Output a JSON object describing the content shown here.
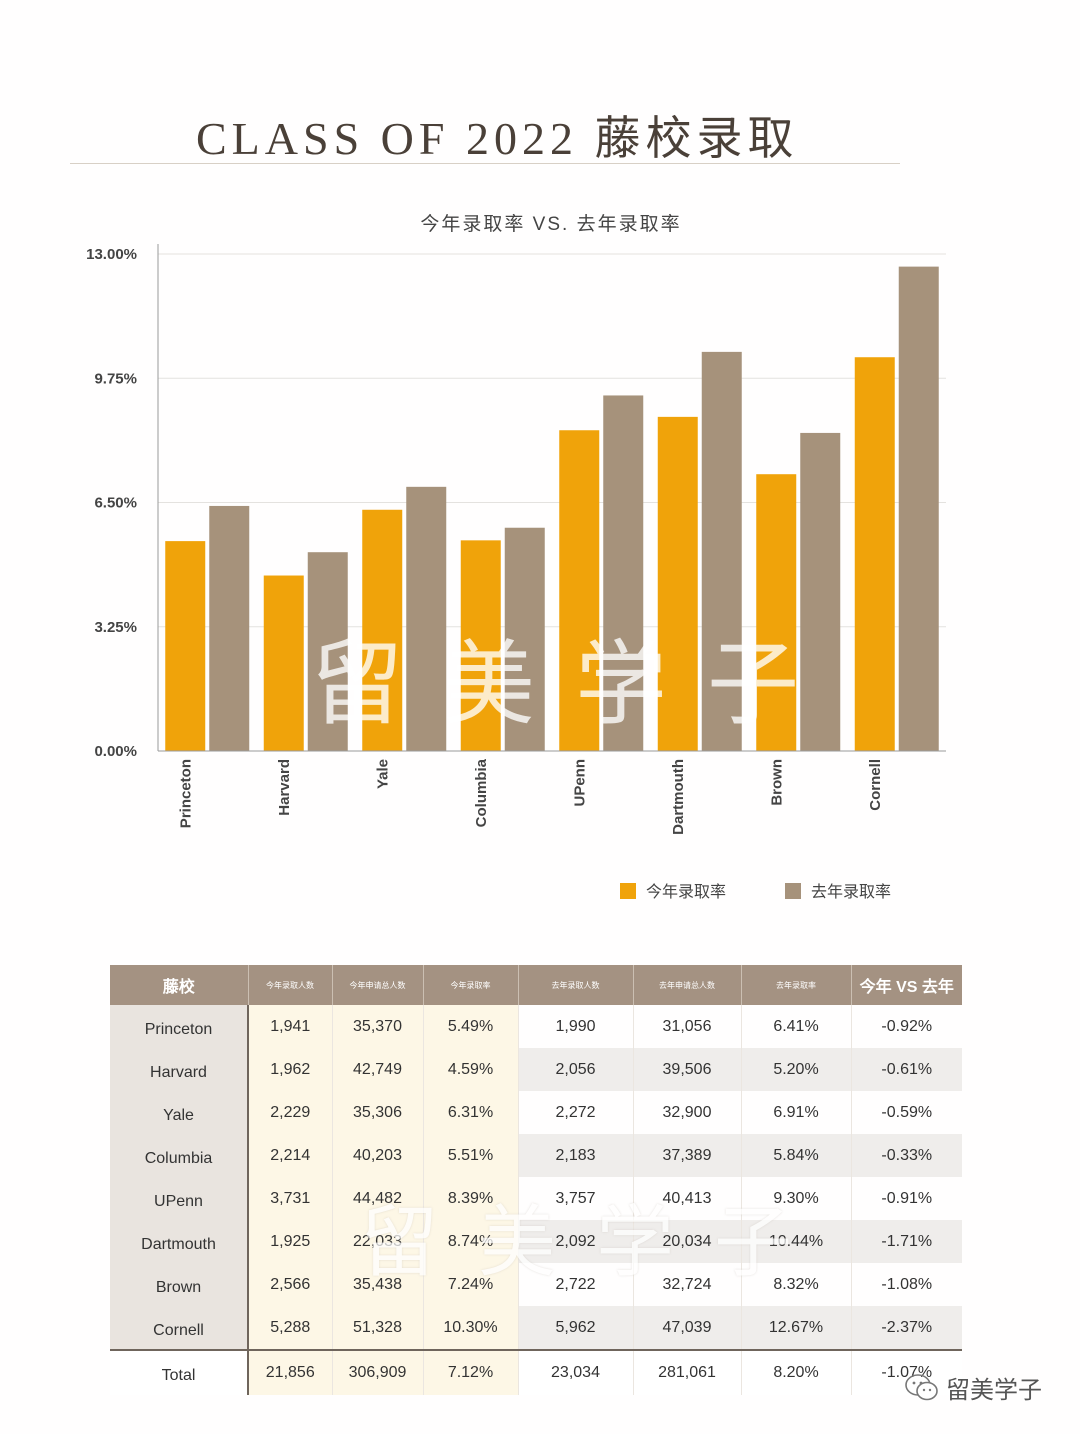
{
  "header": {
    "title": "CLASS OF 2022 藤校录取"
  },
  "chart_data": {
    "type": "bar",
    "title": "今年录取率 VS. 去年录取率",
    "categories": [
      "Princeton",
      "Harvard",
      "Yale",
      "Columbia",
      "UPenn",
      "Dartmouth",
      "Brown",
      "Cornell"
    ],
    "series": [
      {
        "name": "今年录取率",
        "color": "#f0a30a",
        "values": [
          5.49,
          4.59,
          6.31,
          5.51,
          8.39,
          8.74,
          7.24,
          10.3
        ]
      },
      {
        "name": "去年录取率",
        "color": "#a6927b",
        "values": [
          6.41,
          5.2,
          6.91,
          5.84,
          9.3,
          10.44,
          8.32,
          12.67
        ]
      }
    ],
    "ylim": [
      0,
      13
    ],
    "yticks": [
      "0.00%",
      "3.25%",
      "6.50%",
      "9.75%",
      "13.00%"
    ],
    "ytick_values": [
      0,
      3.25,
      6.5,
      9.75,
      13
    ],
    "grid": true,
    "legend": "bottom-right"
  },
  "watermark": {
    "text": "留美学子"
  },
  "table": {
    "headers": [
      "藤校",
      "今年录取人数",
      "今年申请总人数",
      "今年录取率",
      "去年录取人数",
      "去年申请总人数",
      "去年录取率",
      "今年 VS 去年"
    ],
    "rows": [
      [
        "Princeton",
        "1,941",
        "35,370",
        "5.49%",
        "1,990",
        "31,056",
        "6.41%",
        "-0.92%"
      ],
      [
        "Harvard",
        "1,962",
        "42,749",
        "4.59%",
        "2,056",
        "39,506",
        "5.20%",
        "-0.61%"
      ],
      [
        "Yale",
        "2,229",
        "35,306",
        "6.31%",
        "2,272",
        "32,900",
        "6.91%",
        "-0.59%"
      ],
      [
        "Columbia",
        "2,214",
        "40,203",
        "5.51%",
        "2,183",
        "37,389",
        "5.84%",
        "-0.33%"
      ],
      [
        "UPenn",
        "3,731",
        "44,482",
        "8.39%",
        "3,757",
        "40,413",
        "9.30%",
        "-0.91%"
      ],
      [
        "Dartmouth",
        "1,925",
        "22,033",
        "8.74%",
        "2,092",
        "20,034",
        "10.44%",
        "-1.71%"
      ],
      [
        "Brown",
        "2,566",
        "35,438",
        "7.24%",
        "2,722",
        "32,724",
        "8.32%",
        "-1.08%"
      ],
      [
        "Cornell",
        "5,288",
        "51,328",
        "10.30%",
        "5,962",
        "47,039",
        "12.67%",
        "-2.37%"
      ]
    ],
    "total": [
      "Total",
      "21,856",
      "306,909",
      "7.12%",
      "23,034",
      "281,061",
      "8.20%",
      "-1.07%"
    ]
  },
  "footer": {
    "brand": "留美学子",
    "icon": "wechat-icon"
  }
}
